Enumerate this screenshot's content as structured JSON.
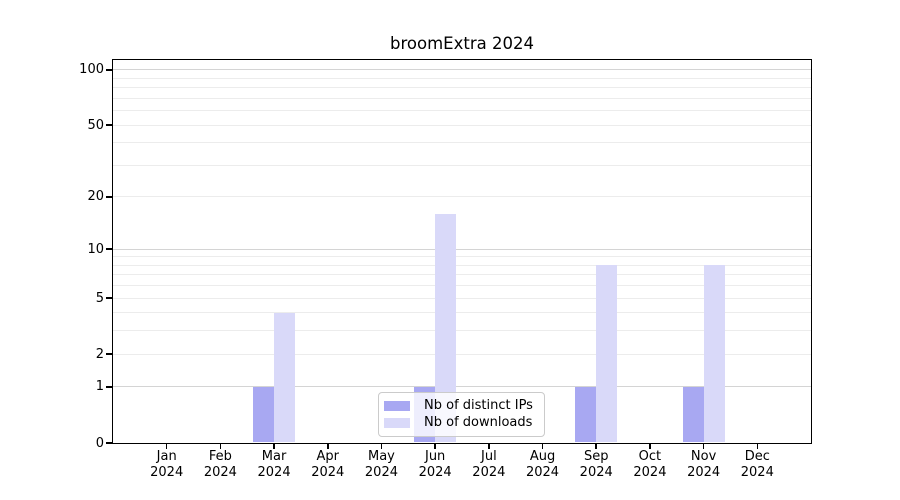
{
  "figure": {
    "background": "#ffffff"
  },
  "chart_data": {
    "type": "bar",
    "title": "broomExtra 2024",
    "x_categories": [
      "Jan",
      "Feb",
      "Mar",
      "Apr",
      "May",
      "Jun",
      "Jul",
      "Aug",
      "Sep",
      "Oct",
      "Nov",
      "Dec"
    ],
    "x_year_label": "2024",
    "series": [
      {
        "name": "Nb of distinct IPs",
        "color": "#a8a8f2",
        "values": [
          0,
          0,
          1,
          0,
          0,
          1,
          0,
          0,
          1,
          0,
          1,
          0
        ]
      },
      {
        "name": "Nb of downloads",
        "color": "#d9d9f9",
        "values": [
          0,
          0,
          4,
          0,
          0,
          16,
          0,
          0,
          8,
          0,
          8,
          0
        ]
      }
    ],
    "y_scale": "log1p",
    "y_ticks": [
      0,
      1,
      2,
      5,
      10,
      20,
      50,
      100
    ],
    "y_major_grid": [
      1,
      10,
      100
    ],
    "y_minor_grid": [
      2,
      3,
      4,
      5,
      6,
      7,
      8,
      9,
      20,
      30,
      40,
      50,
      60,
      70,
      80,
      90
    ],
    "ylim": [
      0,
      113
    ],
    "grid": "horizontal",
    "legend_position": "lower center inside",
    "colors": {
      "axis": "#000000",
      "tick_label": "#000000",
      "grid_major": "#d4d4d4",
      "grid_minor": "#ececec",
      "legend_border": "#cbcbcb"
    }
  }
}
